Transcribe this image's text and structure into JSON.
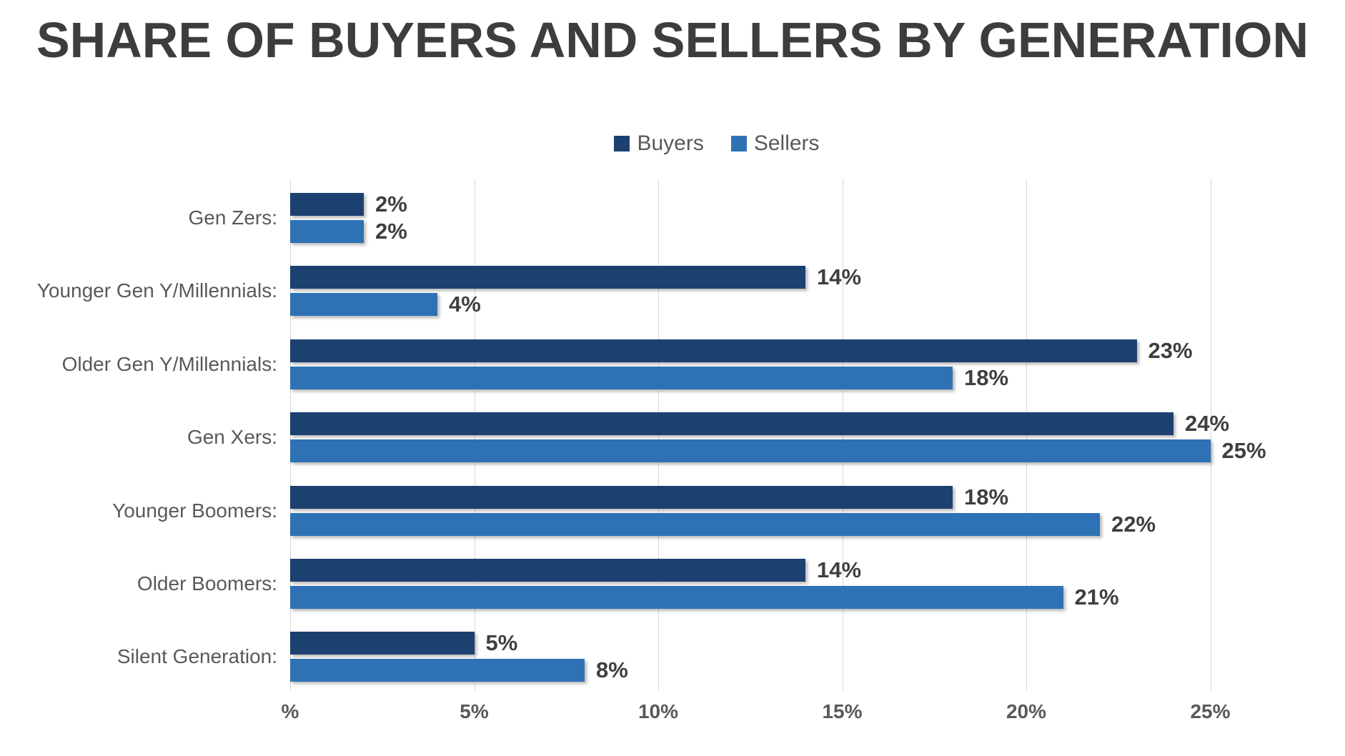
{
  "title": "SHARE OF BUYERS AND SELLERS BY GENERATION",
  "legend": {
    "buyers_label": "Buyers",
    "sellers_label": "Sellers"
  },
  "colors": {
    "buyers": "#1c406f",
    "sellers": "#2e72b5",
    "title_text": "#3d3d3d",
    "label_text": "#595959",
    "value_text": "#3f3f3f",
    "gridline": "#d8d8d8",
    "background": "#ffffff"
  },
  "chart_data": {
    "type": "bar",
    "orientation": "horizontal",
    "title": "SHARE OF BUYERS AND SELLERS BY GENERATION",
    "categories": [
      "Gen Zers:",
      "Younger Gen Y/Millennials:",
      "Older Gen Y/Millennials:",
      "Gen Xers:",
      "Younger Boomers:",
      "Older Boomers:",
      "Silent Generation:"
    ],
    "series": [
      {
        "name": "Buyers",
        "color": "#1c406f",
        "values": [
          2,
          14,
          23,
          24,
          18,
          14,
          5
        ]
      },
      {
        "name": "Sellers",
        "color": "#2e72b5",
        "values": [
          2,
          4,
          18,
          25,
          22,
          21,
          8
        ]
      }
    ],
    "value_suffix": "%",
    "data_labels": true,
    "xlabel": "",
    "ylabel": "",
    "xlim": [
      0,
      25
    ],
    "x_ticks": [
      "%",
      "5%",
      "10%",
      "15%",
      "20%",
      "25%"
    ],
    "x_tick_values": [
      0,
      5,
      10,
      15,
      20,
      25
    ],
    "grid": true,
    "legend_position": "top-center"
  }
}
